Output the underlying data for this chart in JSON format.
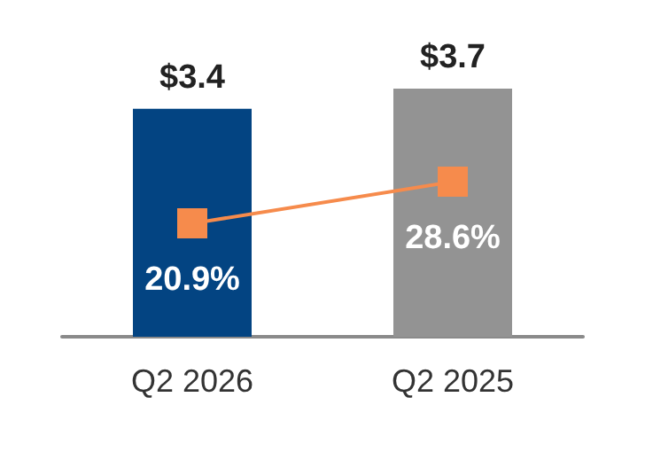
{
  "chart_data": {
    "type": "bar",
    "categories": [
      "Q2 2026",
      "Q2 2025"
    ],
    "series": [
      {
        "colors": [
          "#034482",
          "#939393"
        ],
        "values": [
          3.4,
          3.7
        ],
        "value_labels": [
          "$3.4",
          "$3.7"
        ]
      },
      {
        "type": "line",
        "axis": "y2",
        "color": "#f68b4c",
        "values": [
          20.9,
          28.6
        ],
        "value_labels": [
          "20.9%",
          "28.6%"
        ],
        "marker": "square"
      }
    ]
  }
}
